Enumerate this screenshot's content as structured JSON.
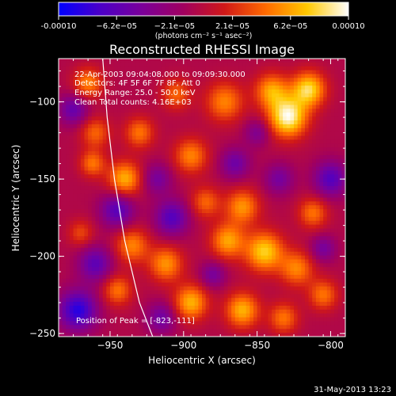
{
  "colorbar": {
    "tick_labels": [
      "-0.00010",
      "−6.2e−05",
      "−2.1e−05",
      "2.1e−05",
      "6.2e−05",
      "0.00010"
    ],
    "units_label": "(photons cm⁻² s⁻¹ asec⁻²)",
    "colors": [
      "#0000ff",
      "#4b00c8",
      "#7a009a",
      "#a00060",
      "#d01818",
      "#ff6a00",
      "#ffc800",
      "#ffffff"
    ]
  },
  "chart_data": {
    "type": "heatmap",
    "title": "Reconstructed RHESSI Image",
    "xlabel": "Heliocentric X (arcsec)",
    "ylabel": "Heliocentric Y (arcsec)",
    "xlim": [
      -985,
      -790
    ],
    "ylim": [
      -252,
      -72
    ],
    "xticks": [
      -950,
      -900,
      -850,
      -800
    ],
    "yticks": [
      -100,
      -150,
      -200,
      -250
    ],
    "xtick_labels": [
      "−950",
      "−900",
      "−850",
      "−800"
    ],
    "ytick_labels": [
      "−100",
      "−150",
      "−200",
      "−250"
    ],
    "limb_curve": [
      [
        -955,
        -72
      ],
      [
        -952,
        -110
      ],
      [
        -947,
        -150
      ],
      [
        -940,
        -190
      ],
      [
        -930,
        -230
      ],
      [
        -921,
        -252
      ]
    ],
    "peak_position": [
      -823,
      -111
    ],
    "annotations": {
      "time_range": "22-Apr-2003 09:04:08.000 to 09:09:30.000",
      "detectors": "Detectors: 4F 5F 6F 7F 8F, Att 0",
      "energy": "Energy Range: 25.0 - 50.0 keV",
      "clean": "Clean    Total counts: 4.16E+03",
      "peak": "Position of Peak = [-823,-111]"
    },
    "blobs": [
      {
        "x": -829,
        "y": -110,
        "v": 1.0,
        "s": 9
      },
      {
        "x": -815,
        "y": -92,
        "v": 0.85,
        "s": 8
      },
      {
        "x": -840,
        "y": -93,
        "v": 0.65,
        "s": 8
      },
      {
        "x": -872,
        "y": -100,
        "v": 0.55,
        "s": 9
      },
      {
        "x": -905,
        "y": -95,
        "v": 0.45,
        "s": 7
      },
      {
        "x": -965,
        "y": -88,
        "v": 0.55,
        "s": 7
      },
      {
        "x": -960,
        "y": -120,
        "v": 0.45,
        "s": 7
      },
      {
        "x": -930,
        "y": -120,
        "v": 0.5,
        "s": 7
      },
      {
        "x": -895,
        "y": -135,
        "v": 0.55,
        "s": 8
      },
      {
        "x": -940,
        "y": -150,
        "v": 0.7,
        "s": 8
      },
      {
        "x": -962,
        "y": -140,
        "v": 0.5,
        "s": 6
      },
      {
        "x": -860,
        "y": -168,
        "v": 0.6,
        "s": 8
      },
      {
        "x": -885,
        "y": -165,
        "v": 0.45,
        "s": 7
      },
      {
        "x": -812,
        "y": -172,
        "v": 0.5,
        "s": 7
      },
      {
        "x": -845,
        "y": -197,
        "v": 0.8,
        "s": 9
      },
      {
        "x": -870,
        "y": -190,
        "v": 0.65,
        "s": 8
      },
      {
        "x": -823,
        "y": -208,
        "v": 0.55,
        "s": 8
      },
      {
        "x": -935,
        "y": -193,
        "v": 0.55,
        "s": 8
      },
      {
        "x": -912,
        "y": -205,
        "v": 0.6,
        "s": 8
      },
      {
        "x": -970,
        "y": -185,
        "v": 0.35,
        "s": 6
      },
      {
        "x": -945,
        "y": -222,
        "v": 0.5,
        "s": 7
      },
      {
        "x": -895,
        "y": -230,
        "v": 0.7,
        "s": 8
      },
      {
        "x": -860,
        "y": -235,
        "v": 0.7,
        "s": 8
      },
      {
        "x": -832,
        "y": -240,
        "v": 0.5,
        "s": 7
      },
      {
        "x": -805,
        "y": -225,
        "v": 0.5,
        "s": 7
      },
      {
        "x": -972,
        "y": -235,
        "v": -0.8,
        "s": 9
      },
      {
        "x": -945,
        "y": -170,
        "v": -0.6,
        "s": 8
      },
      {
        "x": -908,
        "y": -175,
        "v": -0.6,
        "s": 8
      },
      {
        "x": -960,
        "y": -205,
        "v": -0.55,
        "s": 8
      },
      {
        "x": -865,
        "y": -140,
        "v": -0.45,
        "s": 7
      },
      {
        "x": -800,
        "y": -150,
        "v": -0.6,
        "s": 8
      },
      {
        "x": -835,
        "y": -150,
        "v": -0.4,
        "s": 7
      },
      {
        "x": -918,
        "y": -150,
        "v": -0.4,
        "s": 7
      },
      {
        "x": -975,
        "y": -105,
        "v": -0.5,
        "s": 7
      },
      {
        "x": -915,
        "y": -240,
        "v": -0.45,
        "s": 7
      },
      {
        "x": -880,
        "y": -212,
        "v": -0.4,
        "s": 6
      },
      {
        "x": -805,
        "y": -195,
        "v": -0.4,
        "s": 6
      },
      {
        "x": -850,
        "y": -120,
        "v": -0.35,
        "s": 6
      }
    ]
  },
  "footer": {
    "date_stamp": "31-May-2013 13:23"
  }
}
